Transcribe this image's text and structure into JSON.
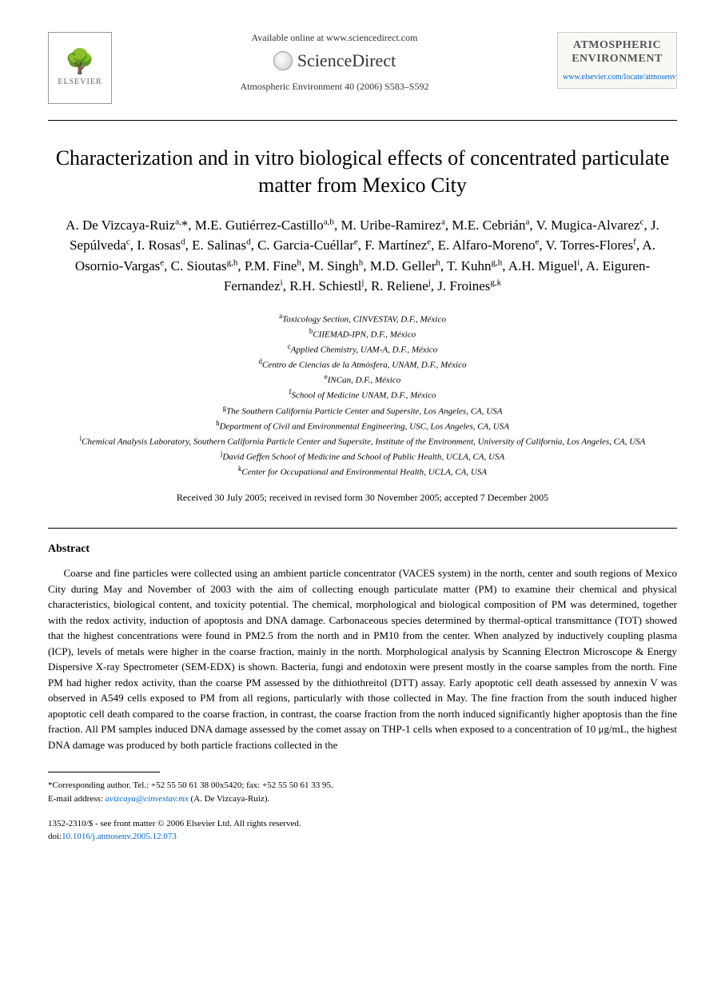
{
  "header": {
    "publisher": "ELSEVIER",
    "available_online": "Available online at www.sciencedirect.com",
    "sciencedirect": "ScienceDirect",
    "journal_reference": "Atmospheric Environment 40 (2006) S583–S592",
    "journal_name_line1": "ATMOSPHERIC",
    "journal_name_line2": "ENVIRONMENT",
    "journal_link": "www.elsevier.com/locate/atmosenv"
  },
  "title": "Characterization and in vitro biological effects of concentrated particulate matter from Mexico City",
  "authors_html": "A. De Vizcaya-Ruiz<sup>a,</sup>*, M.E. Gutiérrez-Castillo<sup>a,b</sup>, M. Uribe-Ramirez<sup>a</sup>, M.E. Cebrián<sup>a</sup>, V. Mugica-Alvarez<sup>c</sup>, J. Sepúlveda<sup>c</sup>, I. Rosas<sup>d</sup>, E. Salinas<sup>d</sup>, C. Garcia-Cuéllar<sup>e</sup>, F. Martínez<sup>e</sup>, E. Alfaro-Moreno<sup>e</sup>, V. Torres-Flores<sup>f</sup>, A. Osornio-Vargas<sup>e</sup>, C. Sioutas<sup>g,h</sup>, P.M. Fine<sup>h</sup>, M. Singh<sup>h</sup>, M.D. Geller<sup>h</sup>, T. Kuhn<sup>g,h</sup>, A.H. Miguel<sup>i</sup>, A. Eiguren-Fernandez<sup>i</sup>, R.H. Schiestl<sup>j</sup>, R. Reliene<sup>j</sup>, J. Froines<sup>g,k</sup>",
  "affiliations": [
    {
      "sup": "a",
      "text": "Toxicology Section, CINVESTAV, D.F., México"
    },
    {
      "sup": "b",
      "text": "CIIEMAD-IPN, D.F., México"
    },
    {
      "sup": "c",
      "text": "Applied Chemistry, UAM-A, D.F., México"
    },
    {
      "sup": "d",
      "text": "Centro de Ciencias de la Atmósfera, UNAM, D.F., México"
    },
    {
      "sup": "e",
      "text": "INCan, D.F., México"
    },
    {
      "sup": "f",
      "text": "School of Medicine UNAM, D.F., México"
    },
    {
      "sup": "g",
      "text": "The Southern California Particle Center and Supersite, Los Angeles, CA, USA"
    },
    {
      "sup": "h",
      "text": "Department of Civil and Environmental Engineering, USC, Los Angeles, CA, USA"
    },
    {
      "sup": "i",
      "text": "Chemical Analysis Laboratory, Southern California Particle Center and Supersite, Institute of the Environment, University of California, Los Angeles, CA, USA"
    },
    {
      "sup": "j",
      "text": "David Geffen School of Medicine and School of Public Health, UCLA, CA, USA"
    },
    {
      "sup": "k",
      "text": "Center for Occupational and Environmental Health, UCLA, CA, USA"
    }
  ],
  "dates": "Received 30 July 2005; received in revised form 30 November 2005; accepted 7 December 2005",
  "abstract_heading": "Abstract",
  "abstract_text": "Coarse and fine particles were collected using an ambient particle concentrator (VACES system) in the north, center and south regions of Mexico City during May and November of 2003 with the aim of collecting enough particulate matter (PM) to examine their chemical and physical characteristics, biological content, and toxicity potential. The chemical, morphological and biological composition of PM was determined, together with the redox activity, induction of apoptosis and DNA damage. Carbonaceous species determined by thermal-optical transmittance (TOT) showed that the highest concentrations were found in PM2.5 from the north and in PM10 from the center. When analyzed by inductively coupling plasma (ICP), levels of metals were higher in the coarse fraction, mainly in the north. Morphological analysis by Scanning Electron Microscope & Energy Dispersive X-ray Spectrometer (SEM-EDX) is shown. Bacteria, fungi and endotoxin were present mostly in the coarse samples from the north. Fine PM had higher redox activity, than the coarse PM assessed by the dithiothreitol (DTT) assay. Early apoptotic cell death assessed by annexin V was observed in A549 cells exposed to PM from all regions, particularly with those collected in May. The fine fraction from the south induced higher apoptotic cell death compared to the coarse fraction, in contrast, the coarse fraction from the north induced significantly higher apoptosis than the fine fraction. All PM samples induced DNA damage assessed by the comet assay on THP-1 cells when exposed to a concentration of 10 μg/mL, the highest DNA damage was produced by both particle fractions collected in the",
  "footnotes": {
    "corresponding": "*Corresponding author. Tel.: +52 55 50 61 38 00x5420; fax: +52 55 50 61 33 95.",
    "email_label": "E-mail address:",
    "email": "avizcaya@cinvestav.mx",
    "email_author": "(A. De Vizcaya-Ruiz)."
  },
  "copyright": {
    "line1": "1352-2310/$ - see front matter © 2006 Elsevier Ltd. All rights reserved.",
    "doi_label": "doi:",
    "doi": "10.1016/j.atmosenv.2005.12.073"
  }
}
